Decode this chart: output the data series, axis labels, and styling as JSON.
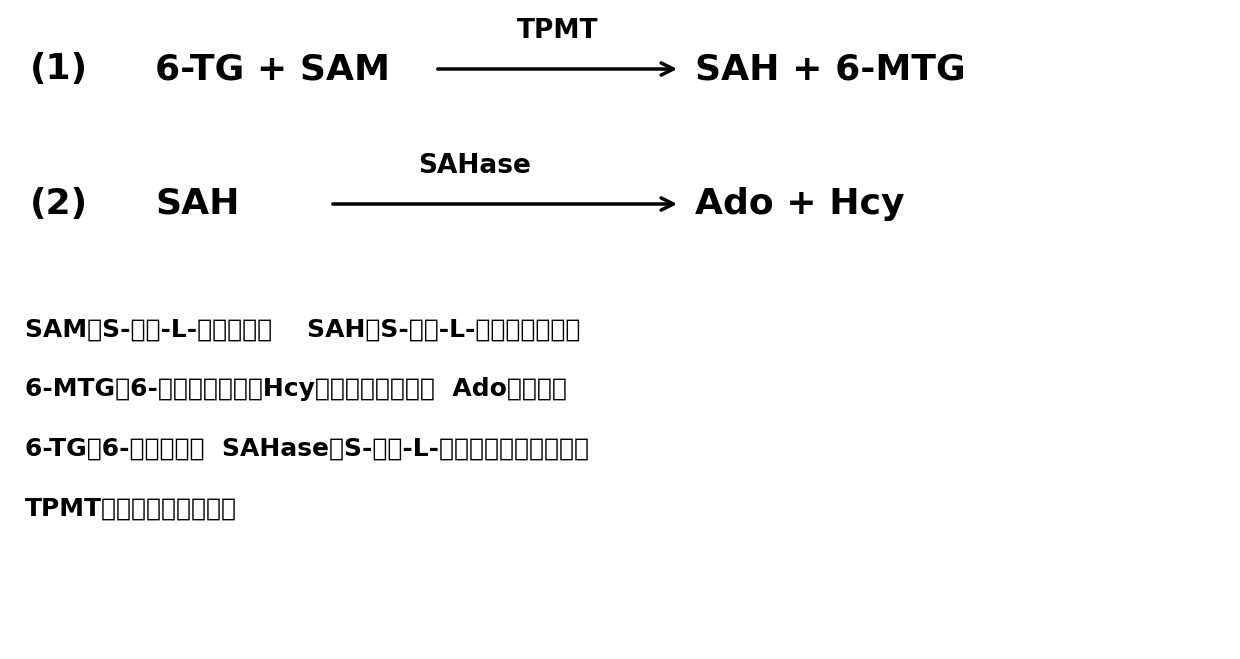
{
  "background_color": "#ffffff",
  "reaction1": {
    "number": "(1)",
    "reactants": "6-TG + SAM",
    "enzyme": "TPMT",
    "products": "SAH + 6-MTG"
  },
  "reaction2": {
    "number": "(2)",
    "reactants": "SAH",
    "enzyme": "SAHase",
    "products": "Ado + Hcy"
  },
  "legend_lines": [
    "SAM：S-腺苷-L-甲硫氨酸；    SAH：S-腺苷-L-同型半胱氨酸；",
    "6-MTG：6-硫甲基鸟嚅咑；Hcy：同型半胱氨酸；  Ado：腺苷；",
    "6-TG：6-硫鸟嚅咑；  SAHase：S-腺苷-L-同型半胱氨酸水解酶；",
    "TPMT：疏嚅咑甲基转移酶"
  ],
  "text_color": "#000000",
  "fontsize_reaction": 26,
  "fontsize_enzyme": 19,
  "fontsize_legend": 18
}
